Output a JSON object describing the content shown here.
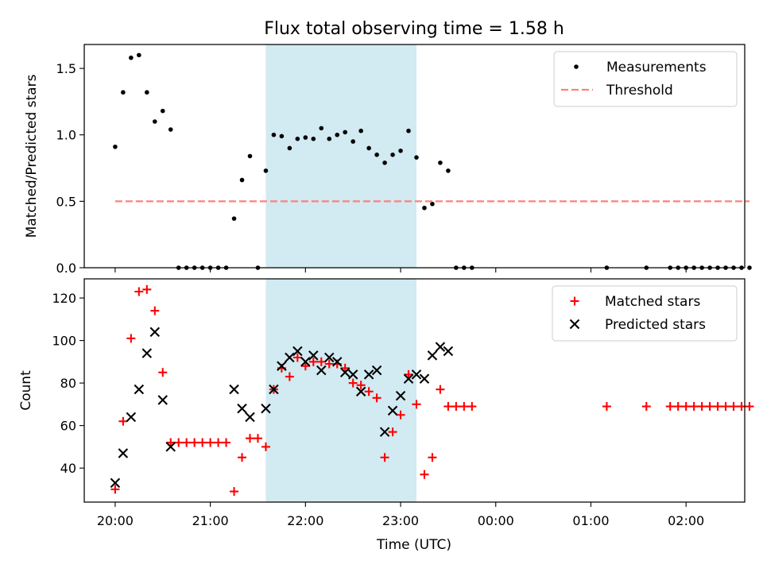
{
  "chart_data": {
    "title": "Flux total observing time = 1.58 h",
    "xlabel": "Time (UTC)",
    "x_ticks": [
      "20:00",
      "21:00",
      "22:00",
      "23:00",
      "00:00",
      "01:00",
      "02:00"
    ],
    "shaded_interval": [
      "21:35",
      "23:10"
    ],
    "shade_color": "#add8e6",
    "panels": [
      {
        "type": "scatter",
        "ylabel": "Matched/Predicted stars",
        "ylim": [
          0,
          1.68
        ],
        "y_ticks": [
          "0.0",
          "0.5",
          "1.0",
          "1.5"
        ],
        "legend_position": "upper right",
        "series": [
          {
            "name": "Measurements",
            "marker": "dot",
            "color": "#000000",
            "points": [
              [
                "20:00",
                0.91
              ],
              [
                "20:05",
                1.32
              ],
              [
                "20:10",
                1.58
              ],
              [
                "20:15",
                1.6
              ],
              [
                "20:20",
                1.32
              ],
              [
                "20:25",
                1.1
              ],
              [
                "20:30",
                1.18
              ],
              [
                "20:35",
                1.04
              ],
              [
                "20:40",
                0.0
              ],
              [
                "20:45",
                0.0
              ],
              [
                "20:50",
                0.0
              ],
              [
                "20:55",
                0.0
              ],
              [
                "21:00",
                0.0
              ],
              [
                "21:05",
                0.0
              ],
              [
                "21:10",
                0.0
              ],
              [
                "21:15",
                0.37
              ],
              [
                "21:20",
                0.66
              ],
              [
                "21:25",
                0.84
              ],
              [
                "21:30",
                0.0
              ],
              [
                "21:35",
                0.73
              ],
              [
                "21:40",
                1.0
              ],
              [
                "21:45",
                0.99
              ],
              [
                "21:50",
                0.9
              ],
              [
                "21:55",
                0.97
              ],
              [
                "22:00",
                0.98
              ],
              [
                "22:05",
                0.97
              ],
              [
                "22:10",
                1.05
              ],
              [
                "22:15",
                0.97
              ],
              [
                "22:20",
                1.0
              ],
              [
                "22:25",
                1.02
              ],
              [
                "22:30",
                0.95
              ],
              [
                "22:35",
                1.03
              ],
              [
                "22:40",
                0.9
              ],
              [
                "22:45",
                0.85
              ],
              [
                "22:50",
                0.79
              ],
              [
                "22:55",
                0.85
              ],
              [
                "23:00",
                0.88
              ],
              [
                "23:05",
                1.03
              ],
              [
                "23:10",
                0.83
              ],
              [
                "23:15",
                0.45
              ],
              [
                "23:20",
                0.48
              ],
              [
                "23:25",
                0.79
              ],
              [
                "23:30",
                0.73
              ],
              [
                "23:35",
                0.0
              ],
              [
                "23:40",
                0.0
              ],
              [
                "23:45",
                0.0
              ],
              [
                "01:10",
                0.0
              ],
              [
                "01:35",
                0.0
              ],
              [
                "01:50",
                0.0
              ],
              [
                "01:55",
                0.0
              ],
              [
                "02:00",
                0.0
              ],
              [
                "02:05",
                0.0
              ],
              [
                "02:10",
                0.0
              ],
              [
                "02:15",
                0.0
              ],
              [
                "02:20",
                0.0
              ],
              [
                "02:25",
                0.0
              ],
              [
                "02:30",
                0.0
              ],
              [
                "02:35",
                0.0
              ],
              [
                "02:40",
                0.0
              ]
            ]
          },
          {
            "name": "Threshold",
            "marker": "dashed-line",
            "color": "#ff7f7f",
            "points": [
              [
                "20:00",
                0.5
              ],
              [
                "02:40",
                0.5
              ]
            ]
          }
        ]
      },
      {
        "type": "scatter",
        "ylabel": "Count",
        "ylim": [
          24,
          129
        ],
        "y_ticks": [
          "40",
          "60",
          "80",
          "100",
          "120"
        ],
        "legend_position": "upper right",
        "series": [
          {
            "name": "Matched stars",
            "marker": "plus",
            "color": "#ff0000",
            "points": [
              [
                "20:00",
                30
              ],
              [
                "20:05",
                62
              ],
              [
                "20:10",
                101
              ],
              [
                "20:15",
                123
              ],
              [
                "20:20",
                124
              ],
              [
                "20:25",
                114
              ],
              [
                "20:30",
                85
              ],
              [
                "20:35",
                52
              ],
              [
                "20:40",
                52
              ],
              [
                "20:45",
                52
              ],
              [
                "20:50",
                52
              ],
              [
                "20:55",
                52
              ],
              [
                "21:00",
                52
              ],
              [
                "21:05",
                52
              ],
              [
                "21:10",
                52
              ],
              [
                "21:15",
                29
              ],
              [
                "21:20",
                45
              ],
              [
                "21:25",
                54
              ],
              [
                "21:30",
                54
              ],
              [
                "21:35",
                50
              ],
              [
                "21:40",
                77
              ],
              [
                "21:45",
                87
              ],
              [
                "21:50",
                83
              ],
              [
                "21:55",
                92
              ],
              [
                "22:00",
                88
              ],
              [
                "22:05",
                90
              ],
              [
                "22:10",
                90
              ],
              [
                "22:15",
                89
              ],
              [
                "22:20",
                89
              ],
              [
                "22:25",
                87
              ],
              [
                "22:30",
                80
              ],
              [
                "22:35",
                79
              ],
              [
                "22:40",
                76
              ],
              [
                "22:45",
                73
              ],
              [
                "22:50",
                45
              ],
              [
                "22:55",
                57
              ],
              [
                "23:00",
                65
              ],
              [
                "23:05",
                84
              ],
              [
                "23:10",
                70
              ],
              [
                "23:15",
                37
              ],
              [
                "23:20",
                45
              ],
              [
                "23:25",
                77
              ],
              [
                "23:30",
                69
              ],
              [
                "23:35",
                69
              ],
              [
                "23:40",
                69
              ],
              [
                "23:45",
                69
              ],
              [
                "01:10",
                69
              ],
              [
                "01:35",
                69
              ],
              [
                "01:50",
                69
              ],
              [
                "01:55",
                69
              ],
              [
                "02:00",
                69
              ],
              [
                "02:05",
                69
              ],
              [
                "02:10",
                69
              ],
              [
                "02:15",
                69
              ],
              [
                "02:20",
                69
              ],
              [
                "02:25",
                69
              ],
              [
                "02:30",
                69
              ],
              [
                "02:35",
                69
              ],
              [
                "02:40",
                69
              ]
            ]
          },
          {
            "name": "Predicted stars",
            "marker": "x",
            "color": "#000000",
            "points": [
              [
                "20:00",
                33
              ],
              [
                "20:05",
                47
              ],
              [
                "20:10",
                64
              ],
              [
                "20:15",
                77
              ],
              [
                "20:20",
                94
              ],
              [
                "20:25",
                104
              ],
              [
                "20:30",
                72
              ],
              [
                "20:35",
                50
              ],
              [
                "21:15",
                77
              ],
              [
                "21:20",
                68
              ],
              [
                "21:25",
                64
              ],
              [
                "21:35",
                68
              ],
              [
                "21:40",
                77
              ],
              [
                "21:45",
                88
              ],
              [
                "21:50",
                92
              ],
              [
                "21:55",
                95
              ],
              [
                "22:00",
                90
              ],
              [
                "22:05",
                93
              ],
              [
                "22:10",
                86
              ],
              [
                "22:15",
                92
              ],
              [
                "22:20",
                90
              ],
              [
                "22:25",
                85
              ],
              [
                "22:30",
                84
              ],
              [
                "22:35",
                76
              ],
              [
                "22:40",
                84
              ],
              [
                "22:45",
                86
              ],
              [
                "22:50",
                57
              ],
              [
                "22:55",
                67
              ],
              [
                "23:00",
                74
              ],
              [
                "23:05",
                82
              ],
              [
                "23:10",
                84
              ],
              [
                "23:15",
                82
              ],
              [
                "23:20",
                93
              ],
              [
                "23:25",
                97
              ],
              [
                "23:30",
                95
              ]
            ]
          }
        ]
      }
    ]
  }
}
